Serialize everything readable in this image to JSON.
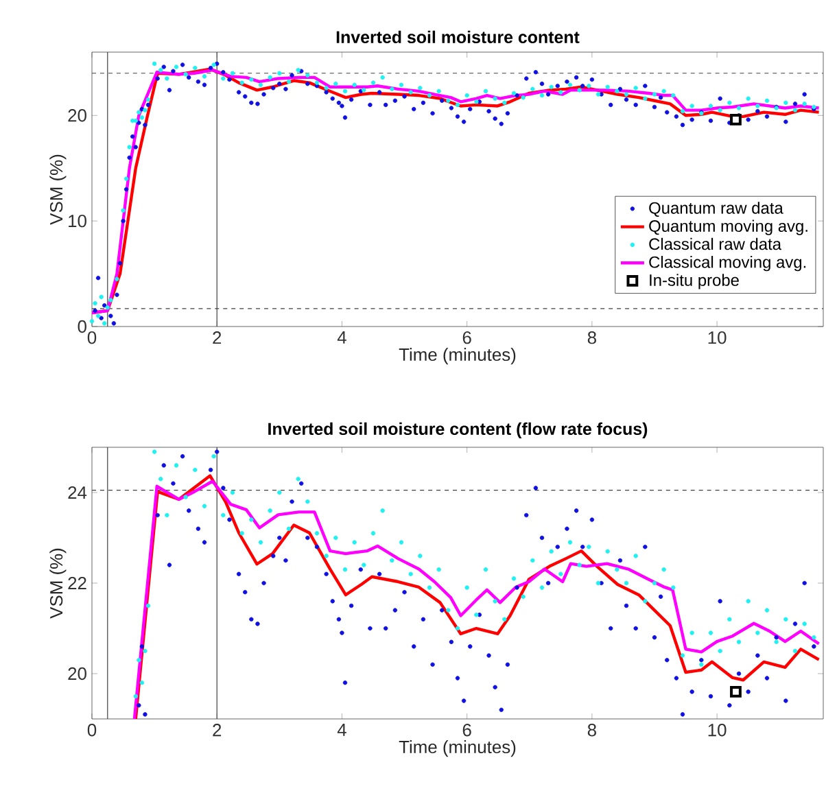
{
  "chart_data": [
    {
      "type": "scatter",
      "title": "Inverted soil moisture content",
      "xlabel": "Time (minutes)",
      "ylabel": "VSM (%)",
      "xlim": [
        0,
        11.7
      ],
      "ylim": [
        0,
        26
      ],
      "xticks": [
        0,
        2,
        4,
        6,
        8,
        10
      ],
      "yticks": [
        0,
        10,
        20
      ],
      "legend": "bottom right",
      "grid": false,
      "ref_lines": [
        {
          "axis": "y",
          "value": 24,
          "color": "#404040",
          "line_style": "dashed"
        },
        {
          "axis": "y",
          "value": 1.7,
          "color": "#404040",
          "line_style": "dashed"
        },
        {
          "axis": "x",
          "value": 0.25,
          "color": "#404040",
          "line_style": "solid"
        },
        {
          "axis": "x",
          "value": 2,
          "color": "#404040",
          "line_style": "solid"
        }
      ],
      "series": [
        {
          "name": "Quantum raw data",
          "marker": "circle",
          "color": "#1010e0",
          "x": [
            0.05,
            0.1,
            0.15,
            0.2,
            0.3,
            0.35,
            0.4,
            0.45,
            0.5,
            0.55,
            0.6,
            0.65,
            0.7,
            0.75,
            0.8,
            0.85,
            0.9,
            1.05,
            1.15,
            1.24,
            1.3,
            1.45,
            1.55,
            1.7,
            1.8,
            1.9,
            2.0,
            2.1,
            2.2,
            2.35,
            2.45,
            2.55,
            2.65,
            2.75,
            2.9,
            3.0,
            3.1,
            3.2,
            3.35,
            3.45,
            3.6,
            3.75,
            3.85,
            3.95,
            4.0,
            4.05,
            4.15,
            4.3,
            4.45,
            4.6,
            4.7,
            4.85,
            5.0,
            5.15,
            5.3,
            5.45,
            5.6,
            5.75,
            5.85,
            5.95,
            6.05,
            6.2,
            6.35,
            6.45,
            6.55,
            6.65,
            6.8,
            6.95,
            7.1,
            7.2,
            7.3,
            7.45,
            7.6,
            7.75,
            7.85,
            8.0,
            8.15,
            8.3,
            8.45,
            8.55,
            8.7,
            8.85,
            9.0,
            9.1,
            9.2,
            9.35,
            9.45,
            9.6,
            9.75,
            9.9,
            10.05,
            10.2,
            10.35,
            10.5,
            10.65,
            10.8,
            10.95,
            11.1,
            11.25,
            11.4,
            11.55
          ],
          "values": [
            1.5,
            4.6,
            0.8,
            2.0,
            1.0,
            0.3,
            3.0,
            6,
            10,
            13,
            16,
            18,
            17,
            19.3,
            20.6,
            19.1,
            21,
            23.5,
            24.6,
            22.4,
            24.2,
            24.8,
            23.6,
            23.2,
            22.9,
            24.5,
            24.9,
            24.1,
            23.4,
            22.2,
            21.8,
            21.2,
            21.1,
            22.0,
            22.6,
            23.0,
            22.5,
            23.8,
            24.2,
            23.0,
            22.8,
            22.2,
            21.6,
            21.2,
            20.9,
            19.8,
            21.5,
            22.3,
            21.0,
            22.2,
            21.0,
            21.4,
            21.8,
            20.6,
            21.2,
            20.2,
            21.4,
            20.7,
            19.9,
            19.4,
            20.6,
            21.3,
            20.4,
            19.7,
            19.2,
            20.2,
            21.9,
            23.5,
            24.1,
            23.0,
            22.0,
            22.8,
            23.2,
            23.6,
            22.8,
            23.4,
            22.0,
            21.0,
            22.5,
            21.5,
            21.0,
            22.8,
            20.8,
            21.7,
            20.3,
            19.9,
            19.1,
            19.6,
            20.3,
            19.5,
            21.6,
            19.3,
            20.0,
            19.6,
            20.4,
            19.9,
            20.8,
            19.4,
            21.1,
            22.0,
            20.6
          ]
        },
        {
          "name": "Quantum moving avg.",
          "type": "line",
          "marker": "none",
          "color": "#ff0000",
          "x": [
            0,
            0.25,
            0.45,
            0.7,
            0.89,
            1.05,
            1.39,
            1.89,
            2.14,
            2.35,
            2.64,
            2.89,
            3.23,
            3.48,
            3.81,
            4.06,
            4.31,
            4.48,
            4.9,
            5.23,
            5.57,
            5.9,
            6.15,
            6.49,
            6.69,
            6.99,
            7.32,
            7.58,
            7.83,
            8.08,
            8.41,
            8.75,
            9.0,
            9.25,
            9.5,
            9.75,
            9.92,
            10.25,
            10.42,
            10.75,
            11.09,
            11.34,
            11.63
          ],
          "values": [
            1.3,
            1.5,
            5,
            15,
            20,
            24.0,
            23.9,
            24.4,
            23.8,
            23.1,
            22.4,
            22.7,
            23.3,
            23.1,
            22.3,
            21.7,
            22.0,
            22.1,
            22.0,
            21.9,
            21.6,
            20.9,
            21.0,
            20.9,
            21.3,
            22.1,
            22.4,
            22.5,
            22.7,
            22.4,
            22.0,
            21.7,
            21.4,
            21.1,
            20.0,
            20.1,
            20.3,
            19.9,
            19.9,
            20.3,
            20.1,
            20.5,
            20.3
          ]
        },
        {
          "name": "Classical raw data",
          "marker": "circle",
          "color": "#20f0f0",
          "x": [
            0.0,
            0.05,
            0.1,
            0.15,
            0.2,
            0.25,
            0.3,
            0.4,
            0.5,
            0.55,
            0.6,
            0.65,
            0.7,
            0.75,
            0.8,
            0.85,
            0.9,
            1.0,
            1.1,
            1.2,
            1.35,
            1.5,
            1.65,
            1.8,
            1.95,
            2.1,
            2.25,
            2.4,
            2.55,
            2.7,
            2.85,
            3.0,
            3.15,
            3.3,
            3.45,
            3.6,
            3.75,
            3.9,
            4.05,
            4.2,
            4.35,
            4.5,
            4.65,
            4.8,
            4.95,
            5.1,
            5.25,
            5.4,
            5.55,
            5.7,
            5.85,
            6.0,
            6.15,
            6.3,
            6.45,
            6.6,
            6.75,
            6.9,
            7.05,
            7.2,
            7.35,
            7.5,
            7.65,
            7.8,
            7.95,
            8.1,
            8.25,
            8.4,
            8.55,
            8.7,
            8.85,
            9.0,
            9.15,
            9.3,
            9.45,
            9.6,
            9.75,
            9.9,
            10.05,
            10.2,
            10.35,
            10.5,
            10.65,
            10.8,
            10.95,
            11.1,
            11.25,
            11.4,
            11.55
          ],
          "values": [
            0.5,
            2.2,
            1.0,
            2.8,
            0.3,
            1.8,
            2.5,
            4.5,
            11,
            14,
            17,
            19.5,
            19.5,
            20.3,
            19.8,
            20.5,
            21.5,
            24.9,
            24.3,
            23.5,
            24.6,
            23.9,
            24.5,
            23.7,
            24.8,
            23.5,
            24.0,
            23.1,
            23.4,
            22.9,
            23.6,
            24.0,
            23.2,
            24.3,
            23.8,
            23.1,
            22.6,
            23.0,
            22.3,
            22.9,
            22.4,
            23.1,
            23.6,
            22.5,
            22.9,
            22.2,
            22.6,
            21.9,
            22.3,
            21.4,
            21.0,
            21.9,
            21.3,
            22.3,
            21.6,
            21.2,
            22.1,
            21.7,
            22.5,
            21.9,
            22.7,
            22.2,
            22.9,
            22.4,
            22.8,
            22.0,
            22.7,
            22.3,
            22.0,
            22.6,
            21.6,
            22.0,
            22.3,
            21.9,
            20.4,
            20.9,
            20.2,
            20.9,
            20.5,
            21.2,
            20.7,
            21.6,
            20.9,
            21.4,
            20.7,
            21.2,
            20.5,
            21.1,
            20.8
          ]
        },
        {
          "name": "Classical moving avg.",
          "type": "line",
          "marker": "none",
          "color": "#ff00ff",
          "x": [
            0,
            0.25,
            0.4,
            0.6,
            0.75,
            1.04,
            1.39,
            1.64,
            1.93,
            2.22,
            2.47,
            2.68,
            2.98,
            3.31,
            3.56,
            3.81,
            4.06,
            4.4,
            4.57,
            4.9,
            5.23,
            5.48,
            5.74,
            5.9,
            6.15,
            6.32,
            6.53,
            6.78,
            6.99,
            7.24,
            7.53,
            7.66,
            7.91,
            8.24,
            8.58,
            8.91,
            9.16,
            9.29,
            9.5,
            9.75,
            10.0,
            10.25,
            10.59,
            10.84,
            11.09,
            11.34,
            11.63
          ],
          "values": [
            1.3,
            1.5,
            5,
            15,
            20,
            24.1,
            23.9,
            24.0,
            24.3,
            23.7,
            23.6,
            23.2,
            23.5,
            23.6,
            23.6,
            22.7,
            22.7,
            22.7,
            22.8,
            22.5,
            22.3,
            22.0,
            21.7,
            21.3,
            21.6,
            21.9,
            21.6,
            21.9,
            22.0,
            22.3,
            22.0,
            22.4,
            22.4,
            22.4,
            22.3,
            22.1,
            21.9,
            21.9,
            20.5,
            20.5,
            20.7,
            20.8,
            21.1,
            20.9,
            20.7,
            20.9,
            20.7
          ]
        },
        {
          "name": "In-situ probe",
          "marker": "square",
          "color": "#000000",
          "x": [
            10.3
          ],
          "values": [
            19.6
          ]
        }
      ]
    },
    {
      "type": "scatter",
      "title": "Inverted soil moisture content (flow rate focus)",
      "xlabel": "Time (minutes)",
      "ylabel": "VSM (%)",
      "xlim": [
        0,
        11.7
      ],
      "ylim": [
        19,
        25
      ],
      "xticks": [
        0,
        2,
        4,
        6,
        8,
        10
      ],
      "yticks": [
        20,
        22,
        24
      ],
      "legend": false,
      "grid": false,
      "ref_lines": [
        {
          "axis": "y",
          "value": 24.05,
          "color": "#404040",
          "line_style": "dashed"
        },
        {
          "axis": "x",
          "value": 0.25,
          "color": "#404040",
          "line_style": "solid"
        },
        {
          "axis": "x",
          "value": 2,
          "color": "#404040",
          "line_style": "solid"
        }
      ],
      "series": [
        {
          "marker": "circle",
          "color": "#1010e0",
          "x": [
            0.75,
            0.8,
            0.85,
            1.05,
            1.15,
            1.24,
            1.3,
            1.45,
            1.55,
            1.7,
            1.8,
            1.9,
            2.0,
            2.1,
            2.2,
            2.35,
            2.45,
            2.55,
            2.65,
            2.75,
            2.9,
            3.0,
            3.1,
            3.2,
            3.35,
            3.45,
            3.6,
            3.75,
            3.85,
            3.95,
            4.0,
            4.05,
            4.15,
            4.3,
            4.45,
            4.6,
            4.7,
            4.85,
            5.0,
            5.15,
            5.3,
            5.45,
            5.6,
            5.75,
            5.85,
            5.95,
            6.05,
            6.2,
            6.35,
            6.45,
            6.55,
            6.65,
            6.8,
            6.95,
            7.1,
            7.2,
            7.3,
            7.45,
            7.6,
            7.75,
            7.85,
            8.0,
            8.15,
            8.3,
            8.45,
            8.55,
            8.7,
            8.85,
            9.0,
            9.1,
            9.2,
            9.35,
            9.45,
            9.6,
            9.75,
            9.9,
            10.05,
            10.2,
            10.35,
            10.5,
            10.65,
            10.8,
            10.95,
            11.1,
            11.25,
            11.4,
            11.55
          ],
          "values": [
            19.3,
            20.6,
            19.1,
            23.5,
            24.6,
            22.4,
            24.2,
            24.8,
            23.6,
            23.2,
            22.9,
            24.5,
            24.9,
            24.1,
            23.4,
            22.2,
            21.8,
            21.2,
            21.1,
            22.0,
            22.6,
            23.0,
            22.5,
            23.8,
            24.2,
            23.0,
            22.8,
            22.2,
            21.6,
            21.2,
            20.9,
            19.8,
            21.5,
            22.3,
            21.0,
            22.2,
            21.0,
            21.4,
            21.8,
            20.6,
            21.2,
            20.2,
            21.4,
            20.7,
            19.9,
            19.4,
            20.6,
            21.3,
            20.4,
            19.7,
            19.2,
            20.2,
            21.9,
            23.5,
            24.1,
            23.0,
            22.0,
            22.8,
            23.2,
            23.6,
            22.8,
            23.4,
            22.0,
            21.0,
            22.5,
            21.5,
            21.0,
            22.8,
            20.8,
            21.7,
            20.3,
            19.9,
            19.1,
            19.6,
            20.3,
            19.5,
            21.6,
            19.3,
            20.0,
            19.6,
            20.4,
            19.9,
            20.8,
            19.4,
            21.1,
            22.0,
            20.6
          ]
        },
        {
          "type": "line",
          "marker": "none",
          "color": "#ff0000",
          "x": [
            0.7,
            1.05,
            1.39,
            1.89,
            2.14,
            2.35,
            2.64,
            2.89,
            3.23,
            3.48,
            3.81,
            4.06,
            4.31,
            4.48,
            4.9,
            5.23,
            5.57,
            5.9,
            6.15,
            6.49,
            6.69,
            6.99,
            7.32,
            7.58,
            7.83,
            8.08,
            8.41,
            8.75,
            9.0,
            9.25,
            9.5,
            9.75,
            9.92,
            10.25,
            10.42,
            10.75,
            11.09,
            11.34,
            11.63
          ],
          "values": [
            19.0,
            24.02,
            23.85,
            24.37,
            23.79,
            23.11,
            22.42,
            22.65,
            23.28,
            23.11,
            22.31,
            21.74,
            21.97,
            22.14,
            22.03,
            21.91,
            21.57,
            20.88,
            21.0,
            20.88,
            21.28,
            22.08,
            22.37,
            22.54,
            22.71,
            22.37,
            21.97,
            21.74,
            21.4,
            21.06,
            20.03,
            20.08,
            20.26,
            19.91,
            19.86,
            20.26,
            20.14,
            20.54,
            20.31
          ]
        },
        {
          "marker": "circle",
          "color": "#20f0f0",
          "x": [
            0.7,
            0.75,
            0.8,
            0.85,
            0.9,
            1.0,
            1.1,
            1.2,
            1.35,
            1.5,
            1.65,
            1.8,
            1.95,
            2.1,
            2.25,
            2.4,
            2.55,
            2.7,
            2.85,
            3.0,
            3.15,
            3.3,
            3.45,
            3.6,
            3.75,
            3.9,
            4.05,
            4.2,
            4.35,
            4.5,
            4.65,
            4.8,
            4.95,
            5.1,
            5.25,
            5.4,
            5.55,
            5.7,
            5.85,
            6.0,
            6.15,
            6.3,
            6.45,
            6.6,
            6.75,
            6.9,
            7.05,
            7.2,
            7.35,
            7.5,
            7.65,
            7.8,
            7.95,
            8.1,
            8.25,
            8.4,
            8.55,
            8.7,
            8.85,
            9.0,
            9.15,
            9.3,
            9.45,
            9.6,
            9.75,
            9.9,
            10.05,
            10.2,
            10.35,
            10.5,
            10.65,
            10.8,
            10.95,
            11.1,
            11.25,
            11.4,
            11.55
          ],
          "values": [
            19.5,
            20.3,
            19.8,
            20.5,
            21.5,
            24.9,
            24.3,
            23.5,
            24.6,
            23.9,
            24.5,
            23.7,
            24.8,
            23.5,
            24.0,
            23.1,
            23.4,
            22.9,
            23.6,
            24.0,
            23.2,
            24.3,
            23.8,
            23.1,
            22.6,
            23.0,
            22.3,
            22.9,
            22.4,
            23.1,
            23.6,
            22.5,
            22.9,
            22.2,
            22.6,
            21.9,
            22.3,
            21.4,
            21.0,
            21.9,
            21.3,
            22.3,
            21.6,
            21.2,
            22.1,
            21.7,
            22.5,
            21.9,
            22.7,
            22.2,
            22.9,
            22.4,
            22.8,
            22.0,
            22.7,
            22.3,
            22.0,
            22.6,
            21.6,
            22.0,
            22.3,
            21.9,
            20.4,
            20.9,
            20.2,
            20.9,
            20.5,
            21.2,
            20.7,
            21.6,
            20.9,
            21.4,
            20.7,
            21.2,
            20.5,
            21.1,
            20.8
          ]
        },
        {
          "type": "line",
          "marker": "none",
          "color": "#ff00ff",
          "x": [
            0.68,
            1.04,
            1.39,
            1.64,
            1.93,
            2.22,
            2.47,
            2.68,
            2.98,
            3.31,
            3.56,
            3.81,
            4.06,
            4.4,
            4.57,
            4.9,
            5.23,
            5.48,
            5.74,
            5.9,
            6.15,
            6.32,
            6.53,
            6.78,
            6.99,
            7.24,
            7.53,
            7.66,
            7.91,
            8.24,
            8.58,
            8.91,
            9.16,
            9.29,
            9.5,
            9.75,
            10.0,
            10.25,
            10.59,
            10.84,
            11.09,
            11.34,
            11.63
          ],
          "values": [
            19.0,
            24.14,
            23.85,
            24.02,
            24.25,
            23.74,
            23.62,
            23.22,
            23.51,
            23.57,
            23.57,
            22.71,
            22.65,
            22.71,
            22.82,
            22.54,
            22.31,
            22.03,
            21.68,
            21.28,
            21.63,
            21.85,
            21.57,
            21.91,
            22.03,
            22.31,
            22.03,
            22.43,
            22.37,
            22.43,
            22.31,
            22.08,
            21.91,
            21.85,
            20.54,
            20.48,
            20.71,
            20.83,
            21.11,
            20.94,
            20.71,
            20.94,
            20.66
          ]
        },
        {
          "marker": "square",
          "color": "#000000",
          "x": [
            10.3
          ],
          "values": [
            19.6
          ]
        }
      ]
    }
  ]
}
